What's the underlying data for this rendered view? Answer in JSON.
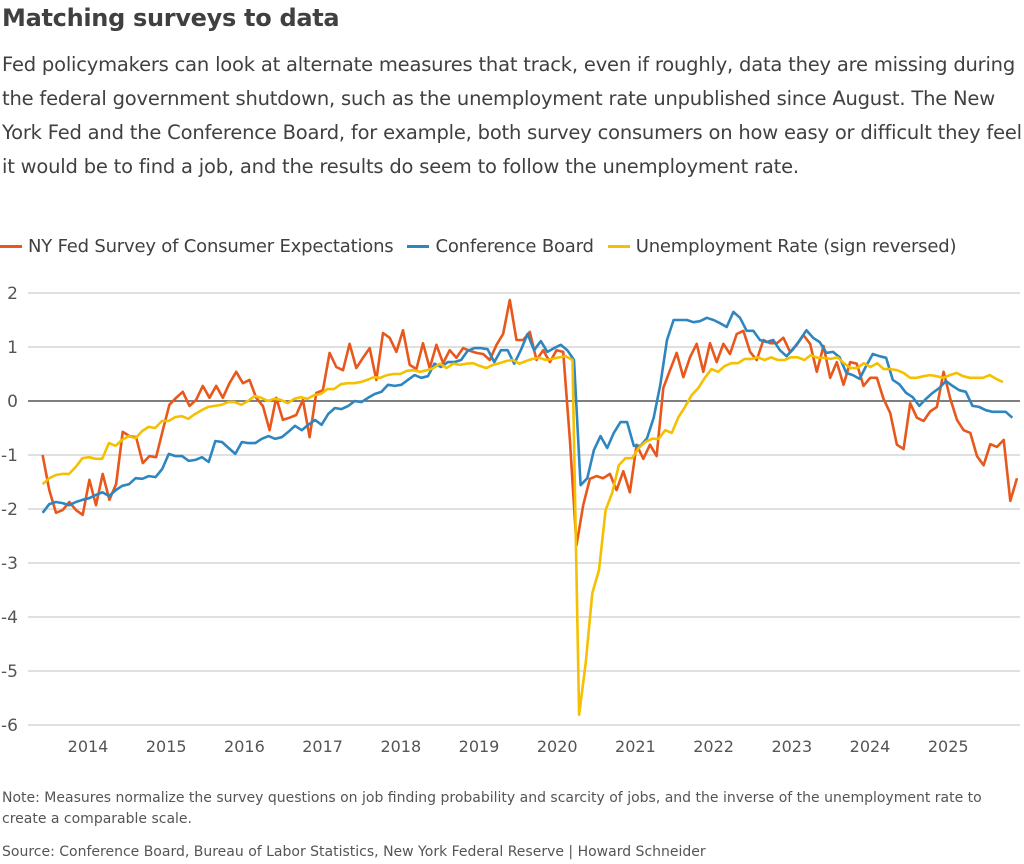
{
  "title": "Matching surveys to data",
  "subtitle": "Fed policymakers can look at alternate measures that track, even if roughly, data they are missing during the federal government shutdown, such as the unemployment rate unpublished since August. The New York Fed and the Conference Board, for example, both survey consumers on how easy or difficult they feel it would be to find a job, and the results do seem to follow the unemployment rate.",
  "note": "Note: Measures normalize the survey questions on job finding probability and scarcity of jobs, and the inverse of the unemployment rate to create a comparable scale.",
  "source": "Source: Conference Board, Bureau of Labor Statistics, New York Federal Reserve | Howard Schneider",
  "chart_data": {
    "type": "line",
    "title": "Matching surveys to data",
    "xlabel": "",
    "ylabel": "",
    "xlim": [
      2013.4,
      2025.95
    ],
    "ylim": [
      -6,
      2
    ],
    "yticks": [
      2,
      1,
      0,
      -1,
      -2,
      -3,
      -4,
      -5,
      -6
    ],
    "ytick_labels": [
      "2",
      "1",
      "0",
      "-1",
      "-2",
      "-3",
      "-4",
      "-5",
      "-6"
    ],
    "xticks": [
      2014,
      2015,
      2016,
      2017,
      2018,
      2019,
      2020,
      2021,
      2022,
      2023,
      2024,
      2025
    ],
    "xtick_labels": [
      "2014",
      "2015",
      "2016",
      "2017",
      "2018",
      "2019",
      "2020",
      "2021",
      "2022",
      "2023",
      "2024",
      "2025"
    ],
    "grid": true,
    "legend_position": "top-left",
    "series": [
      {
        "name": "NY Fed Survey of Consumer Expectations",
        "color": "#e8571b",
        "start": 2013.42,
        "end": 2025.88,
        "values": [
          -1.0,
          -1.65,
          -2.07,
          -2.02,
          -1.87,
          -2.02,
          -2.11,
          -1.46,
          -1.93,
          -1.35,
          -1.83,
          -1.54,
          -0.57,
          -0.65,
          -0.67,
          -1.15,
          -1.02,
          -1.04,
          -0.54,
          -0.07,
          0.06,
          0.17,
          -0.09,
          0.02,
          0.28,
          0.06,
          0.28,
          0.06,
          0.33,
          0.54,
          0.33,
          0.39,
          0.06,
          -0.09,
          -0.54,
          0.06,
          -0.35,
          -0.31,
          -0.26,
          0.02,
          -0.67,
          0.15,
          0.2,
          0.89,
          0.63,
          0.57,
          1.06,
          0.61,
          0.8,
          0.98,
          0.39,
          1.26,
          1.17,
          0.91,
          1.31,
          0.67,
          0.59,
          1.07,
          0.61,
          1.04,
          0.7,
          0.94,
          0.8,
          0.98,
          0.93,
          0.89,
          0.87,
          0.76,
          1.04,
          1.24,
          1.87,
          1.13,
          1.13,
          1.28,
          0.76,
          0.94,
          0.72,
          0.94,
          0.91,
          -0.72,
          -2.67,
          -1.93,
          -1.44,
          -1.39,
          -1.43,
          -1.35,
          -1.65,
          -1.3,
          -1.69,
          -0.81,
          -1.07,
          -0.81,
          -1.02,
          0.24,
          0.57,
          0.89,
          0.44,
          0.81,
          1.06,
          0.54,
          1.07,
          0.72,
          1.06,
          0.87,
          1.24,
          1.3,
          0.91,
          0.76,
          1.13,
          1.07,
          1.07,
          1.17,
          0.91,
          1.04,
          1.22,
          1.06,
          0.54,
          1.02,
          0.43,
          0.72,
          0.3,
          0.72,
          0.69,
          0.28,
          0.43,
          0.43,
          0.04,
          -0.22,
          -0.81,
          -0.89,
          -0.04,
          -0.31,
          -0.37,
          -0.19,
          -0.11,
          0.54,
          0.04,
          -0.35,
          -0.54,
          -0.59,
          -1.02,
          -1.19,
          -0.8,
          -0.85,
          -0.72,
          -1.85,
          -1.43
        ]
      },
      {
        "name": "Conference Board",
        "color": "#2e86c1",
        "start": 2013.42,
        "end": 2025.82,
        "values": [
          -2.07,
          -1.91,
          -1.87,
          -1.89,
          -1.93,
          -1.87,
          -1.83,
          -1.8,
          -1.74,
          -1.69,
          -1.76,
          -1.65,
          -1.57,
          -1.54,
          -1.43,
          -1.44,
          -1.39,
          -1.41,
          -1.26,
          -0.98,
          -1.02,
          -1.02,
          -1.11,
          -1.09,
          -1.04,
          -1.13,
          -0.74,
          -0.76,
          -0.87,
          -0.98,
          -0.76,
          -0.78,
          -0.78,
          -0.7,
          -0.65,
          -0.7,
          -0.67,
          -0.57,
          -0.46,
          -0.54,
          -0.44,
          -0.35,
          -0.44,
          -0.24,
          -0.13,
          -0.15,
          -0.09,
          0,
          -0.02,
          0.06,
          0.13,
          0.17,
          0.3,
          0.28,
          0.3,
          0.39,
          0.48,
          0.43,
          0.46,
          0.69,
          0.63,
          0.72,
          0.72,
          0.76,
          0.93,
          0.98,
          0.98,
          0.96,
          0.72,
          0.94,
          0.94,
          0.69,
          0.94,
          1.24,
          0.94,
          1.11,
          0.91,
          0.98,
          1.04,
          0.94,
          0.76,
          -1.56,
          -1.43,
          -0.91,
          -0.65,
          -0.87,
          -0.59,
          -0.39,
          -0.39,
          -0.83,
          -0.83,
          -0.69,
          -0.31,
          0.3,
          1.13,
          1.5,
          1.5,
          1.5,
          1.46,
          1.48,
          1.54,
          1.5,
          1.44,
          1.37,
          1.65,
          1.54,
          1.3,
          1.3,
          1.13,
          1.09,
          1.13,
          0.94,
          0.83,
          0.96,
          1.13,
          1.31,
          1.17,
          1.09,
          0.89,
          0.91,
          0.81,
          0.52,
          0.48,
          0.41,
          0.65,
          0.87,
          0.83,
          0.8,
          0.39,
          0.31,
          0.15,
          0.07,
          -0.09,
          0.04,
          0.15,
          0.24,
          0.37,
          0.28,
          0.2,
          0.17,
          -0.09,
          -0.11,
          -0.17,
          -0.2,
          -0.2,
          -0.2,
          -0.31
        ]
      },
      {
        "name": "Unemployment Rate (sign reversed)",
        "color": "#f5c000",
        "start": 2013.42,
        "end": 2025.7,
        "values": [
          -1.54,
          -1.43,
          -1.37,
          -1.35,
          -1.35,
          -1.22,
          -1.06,
          -1.04,
          -1.07,
          -1.07,
          -0.78,
          -0.83,
          -0.72,
          -0.65,
          -0.69,
          -0.56,
          -0.48,
          -0.5,
          -0.37,
          -0.37,
          -0.3,
          -0.28,
          -0.33,
          -0.24,
          -0.17,
          -0.11,
          -0.09,
          -0.07,
          -0.02,
          -0.02,
          -0.07,
          0,
          0.09,
          0.06,
          0,
          0.04,
          0.02,
          -0.04,
          0.04,
          0.07,
          0.04,
          0.11,
          0.13,
          0.22,
          0.22,
          0.31,
          0.33,
          0.33,
          0.35,
          0.39,
          0.44,
          0.43,
          0.48,
          0.5,
          0.5,
          0.56,
          0.57,
          0.54,
          0.57,
          0.61,
          0.69,
          0.61,
          0.69,
          0.67,
          0.69,
          0.7,
          0.65,
          0.61,
          0.67,
          0.7,
          0.74,
          0.76,
          0.69,
          0.74,
          0.78,
          0.8,
          0.76,
          0.78,
          0.81,
          0.83,
          0.76,
          -5.81,
          -4.85,
          -3.56,
          -3.13,
          -2.02,
          -1.7,
          -1.19,
          -1.06,
          -1.06,
          -0.87,
          -0.76,
          -0.7,
          -0.7,
          -0.54,
          -0.59,
          -0.3,
          -0.11,
          0.11,
          0.24,
          0.43,
          0.59,
          0.54,
          0.65,
          0.7,
          0.7,
          0.78,
          0.78,
          0.81,
          0.76,
          0.81,
          0.76,
          0.76,
          0.81,
          0.81,
          0.76,
          0.85,
          0.8,
          0.8,
          0.78,
          0.81,
          0.7,
          0.61,
          0.61,
          0.7,
          0.63,
          0.7,
          0.59,
          0.59,
          0.57,
          0.52,
          0.43,
          0.43,
          0.46,
          0.48,
          0.46,
          0.43,
          0.48,
          0.52,
          0.46,
          0.43,
          0.43,
          0.43,
          0.48,
          0.41,
          0.35
        ]
      }
    ]
  }
}
